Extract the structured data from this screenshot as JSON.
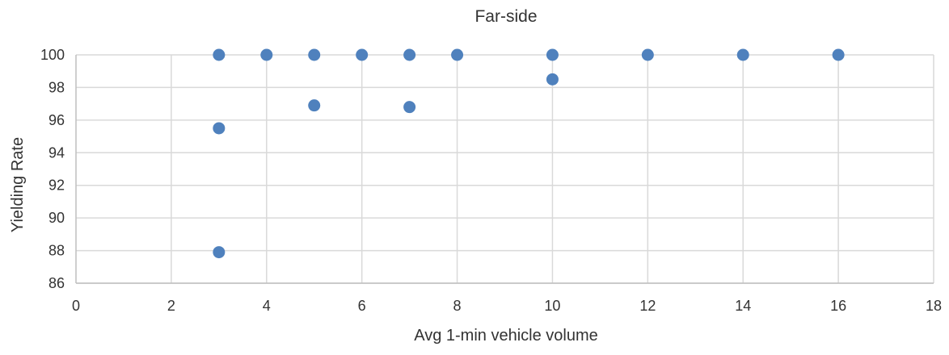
{
  "chart_data": {
    "type": "scatter",
    "title": "Far-side",
    "xlabel": "Avg 1-min vehicle volume",
    "ylabel": "Yielding Rate",
    "xlim": [
      0,
      18
    ],
    "ylim": [
      86,
      100
    ],
    "x_ticks": [
      0,
      2,
      4,
      6,
      8,
      10,
      12,
      14,
      16,
      18
    ],
    "y_ticks": [
      86,
      88,
      90,
      92,
      94,
      96,
      98,
      100
    ],
    "grid": true,
    "legend": "none",
    "series": [
      {
        "color": "#4f81bd",
        "points": [
          {
            "x": 3,
            "y": 100
          },
          {
            "x": 3,
            "y": 95.5
          },
          {
            "x": 3,
            "y": 87.9
          },
          {
            "x": 4,
            "y": 100
          },
          {
            "x": 5,
            "y": 100
          },
          {
            "x": 5,
            "y": 96.9
          },
          {
            "x": 6,
            "y": 100
          },
          {
            "x": 7,
            "y": 100
          },
          {
            "x": 7,
            "y": 96.8
          },
          {
            "x": 8,
            "y": 100
          },
          {
            "x": 10,
            "y": 100
          },
          {
            "x": 10,
            "y": 98.5
          },
          {
            "x": 12,
            "y": 100
          },
          {
            "x": 14,
            "y": 100
          },
          {
            "x": 16,
            "y": 100
          }
        ]
      }
    ]
  }
}
